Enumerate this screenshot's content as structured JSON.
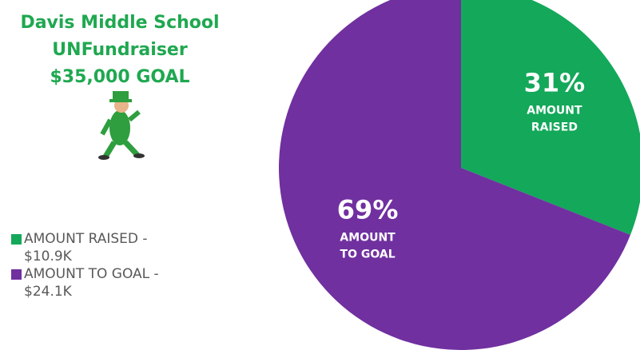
{
  "chart_data": {
    "type": "pie",
    "title": [
      "Davis Middle School",
      "UNFundraiser",
      "$35,000 GOAL"
    ],
    "categories": [
      "AMOUNT RAISED - $10.9K",
      "AMOUNT TO GOAL - $24.1K"
    ],
    "values": [
      31,
      69
    ],
    "value_labels": [
      "31%",
      "69%"
    ],
    "slice_labels": [
      [
        "AMOUNT",
        "RAISED"
      ],
      [
        "AMOUNT",
        "TO GOAL"
      ]
    ],
    "colors": [
      "#13a85a",
      "#7030a0"
    ],
    "legend": "left"
  }
}
